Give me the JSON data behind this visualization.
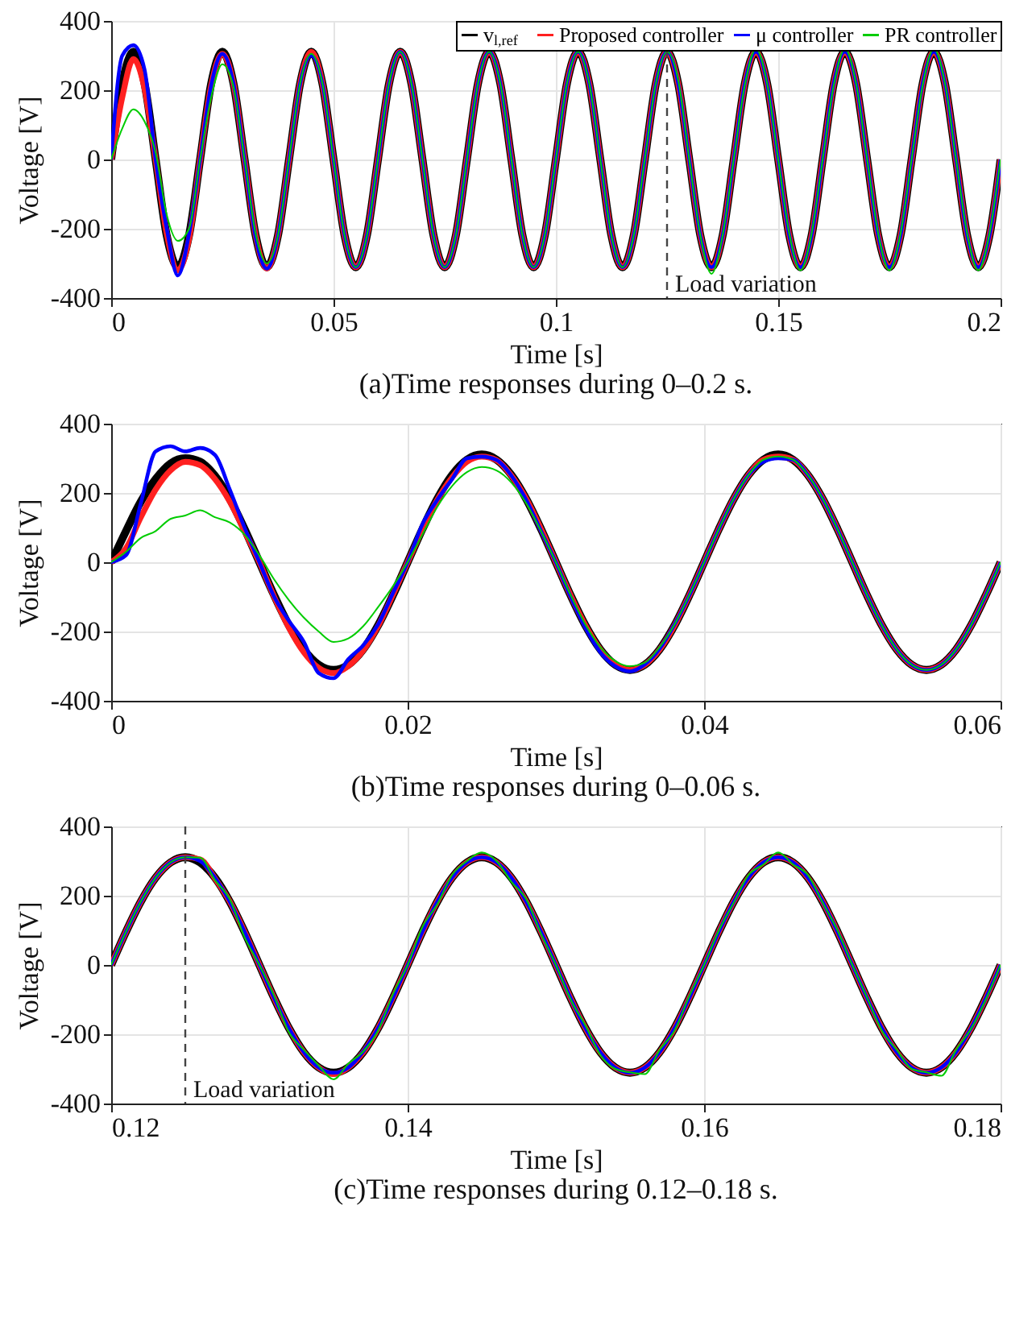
{
  "chart_data": [
    {
      "type": "line",
      "title": "(a)Time responses during 0–0.2 s.",
      "xlabel": "Time [s]",
      "ylabel": "Voltage [V]",
      "xlim": [
        0,
        0.2
      ],
      "xticks": [
        0,
        0.05,
        0.1,
        0.15,
        0.2
      ],
      "ylim": [
        -400,
        400
      ],
      "yticks": [
        -400,
        -200,
        0,
        200,
        400
      ],
      "grid": true,
      "legend": "top right",
      "x": [
        0,
        0.0025,
        0.005,
        0.0075,
        0.01,
        0.0125,
        0.015,
        0.0175,
        0.02,
        0.0225,
        0.025,
        0.0275,
        0.03,
        0.0325,
        0.035,
        0.0375,
        0.04,
        0.0425,
        0.045,
        0.0475,
        0.05,
        0.0525,
        0.055,
        0.0575,
        0.06,
        0.0625,
        0.065,
        0.0675,
        0.07,
        0.0725,
        0.075,
        0.0775,
        0.08,
        0.0825,
        0.085,
        0.0875,
        0.09,
        0.0925,
        0.095,
        0.0975,
        0.1,
        0.1025,
        0.105,
        0.1075,
        0.11,
        0.1125,
        0.115,
        0.1175,
        0.12,
        0.1225,
        0.125,
        0.1275,
        0.13,
        0.1325,
        0.135,
        0.1375,
        0.14,
        0.1425,
        0.145,
        0.1475,
        0.15,
        0.1525,
        0.155,
        0.1575,
        0.16,
        0.1625,
        0.165,
        0.1675,
        0.17,
        0.1725,
        0.175,
        0.1775,
        0.18,
        0.1825,
        0.185,
        0.1875,
        0.19,
        0.1925,
        0.195,
        0.1975,
        0.2
      ],
      "series": [
        {
          "name": "v$_{l,ref}$",
          "color": "#000000",
          "values": [
            0,
            220,
            311,
            220,
            0,
            -220,
            -311,
            -220,
            0,
            220,
            311,
            220,
            0,
            -220,
            -311,
            -220,
            0,
            220,
            311,
            220,
            0,
            -220,
            -311,
            -220,
            0,
            220,
            311,
            220,
            0,
            -220,
            -311,
            -220,
            0,
            220,
            311,
            220,
            0,
            -220,
            -311,
            -220,
            0,
            220,
            311,
            220,
            0,
            -220,
            -311,
            -220,
            0,
            220,
            311,
            220,
            0,
            -220,
            -311,
            -220,
            0,
            220,
            311,
            220,
            0,
            -220,
            -311,
            -220,
            0,
            220,
            311,
            220,
            0,
            -220,
            -311,
            -220,
            0,
            220,
            311,
            220,
            0,
            -220,
            -311,
            -220,
            0
          ]
        },
        {
          "name": "Proposed controller",
          "color": "#ff2020",
          "values": [
            0,
            180,
            290,
            205,
            0,
            -215,
            -320,
            -230,
            0,
            215,
            305,
            220,
            0,
            -220,
            -315,
            -220,
            0,
            220,
            311,
            220,
            0,
            -220,
            -311,
            -220,
            0,
            220,
            311,
            220,
            0,
            -220,
            -311,
            -220,
            0,
            220,
            311,
            220,
            0,
            -220,
            -311,
            -220,
            0,
            220,
            311,
            220,
            0,
            -220,
            -311,
            -220,
            0,
            220,
            311,
            220,
            0,
            -220,
            -311,
            -220,
            0,
            220,
            311,
            220,
            0,
            -220,
            -311,
            -220,
            0,
            220,
            311,
            220,
            0,
            -220,
            -311,
            -220,
            0,
            220,
            311,
            220,
            0,
            -220,
            -311,
            -220,
            0
          ]
        },
        {
          "name": "μ controller",
          "color": "#0000ff",
          "values": [
            0,
            300,
            330,
            260,
            0,
            -200,
            -335,
            -215,
            0,
            215,
            305,
            220,
            0,
            -225,
            -315,
            -220,
            0,
            220,
            300,
            220,
            0,
            -220,
            -311,
            -220,
            0,
            220,
            311,
            220,
            0,
            -220,
            -311,
            -220,
            0,
            220,
            311,
            220,
            0,
            -220,
            -311,
            -220,
            0,
            220,
            311,
            220,
            0,
            -220,
            -311,
            -220,
            0,
            220,
            311,
            220,
            0,
            -220,
            -311,
            -220,
            0,
            220,
            311,
            220,
            0,
            -220,
            -311,
            -220,
            0,
            220,
            311,
            220,
            0,
            -220,
            -311,
            -220,
            0,
            220,
            311,
            220,
            0,
            -220,
            -311,
            -220,
            0
          ]
        },
        {
          "name": "PR controller",
          "color": "#00cc00",
          "values": [
            0,
            90,
            145,
            110,
            20,
            -160,
            -235,
            -200,
            0,
            180,
            275,
            210,
            0,
            -215,
            -300,
            -220,
            0,
            220,
            305,
            220,
            0,
            -220,
            -311,
            -220,
            0,
            220,
            311,
            220,
            0,
            -220,
            -311,
            -220,
            0,
            220,
            311,
            220,
            0,
            -220,
            -311,
            -220,
            0,
            220,
            311,
            220,
            0,
            -220,
            -311,
            -220,
            0,
            220,
            311,
            230,
            0,
            -220,
            -330,
            -220,
            0,
            215,
            320,
            220,
            0,
            -215,
            -320,
            -215,
            0,
            215,
            320,
            220,
            0,
            -215,
            -320,
            -215,
            0,
            215,
            320,
            220,
            0,
            -215,
            -320,
            -215,
            0
          ]
        }
      ],
      "ref_lines": [
        {
          "axis": "x",
          "value": 0.125,
          "label": "Load variation",
          "line_style": "dashed",
          "color": "#444444"
        }
      ]
    },
    {
      "type": "line",
      "title": "(b)Time responses during 0–0.06 s.",
      "xlabel": "Time [s]",
      "ylabel": "Voltage [V]",
      "xlim": [
        0,
        0.06
      ],
      "xticks": [
        0,
        0.02,
        0.04,
        0.06
      ],
      "ylim": [
        -400,
        400
      ],
      "yticks": [
        -400,
        -200,
        0,
        200,
        400
      ],
      "grid": true,
      "x": [
        0,
        0.001,
        0.002,
        0.003,
        0.004,
        0.005,
        0.006,
        0.007,
        0.008,
        0.009,
        0.01,
        0.011,
        0.012,
        0.013,
        0.014,
        0.015,
        0.016,
        0.017,
        0.018,
        0.019,
        0.02,
        0.021,
        0.022,
        0.023,
        0.024,
        0.025,
        0.026,
        0.027,
        0.028,
        0.029,
        0.03,
        0.031,
        0.032,
        0.033,
        0.034,
        0.035,
        0.036,
        0.037,
        0.038,
        0.039,
        0.04,
        0.041,
        0.042,
        0.043,
        0.044,
        0.045,
        0.046,
        0.047,
        0.048,
        0.049,
        0.05,
        0.051,
        0.052,
        0.053,
        0.054,
        0.055,
        0.056,
        0.057,
        0.058,
        0.059,
        0.06
      ],
      "series": [
        {
          "color": "#000000",
          "values": [
            0,
            90,
            175,
            240,
            285,
            300,
            290,
            250,
            183,
            96,
            0,
            -96,
            -183,
            -252,
            -296,
            -311,
            -296,
            -252,
            -183,
            -96,
            0,
            96,
            183,
            252,
            296,
            311,
            296,
            252,
            183,
            96,
            0,
            -96,
            -183,
            -252,
            -296,
            -311,
            -296,
            -252,
            -183,
            -96,
            0,
            96,
            183,
            252,
            296,
            311,
            296,
            252,
            183,
            96,
            0,
            -96,
            -183,
            -252,
            -296,
            -311,
            -296,
            -252,
            -183,
            -96,
            0
          ]
        },
        {
          "color": "#ff2020",
          "values": [
            0,
            40,
            130,
            210,
            265,
            290,
            280,
            240,
            175,
            90,
            0,
            -100,
            -190,
            -260,
            -305,
            -320,
            -300,
            -255,
            -185,
            -95,
            0,
            95,
            180,
            245,
            290,
            305,
            295,
            250,
            183,
            96,
            0,
            -96,
            -183,
            -252,
            -296,
            -311,
            -296,
            -252,
            -183,
            -96,
            0,
            96,
            183,
            252,
            296,
            305,
            296,
            252,
            183,
            96,
            0,
            -96,
            -183,
            -252,
            -296,
            -311,
            -296,
            -252,
            -183,
            -96,
            0
          ]
        },
        {
          "color": "#0000ff",
          "values": [
            0,
            20,
            170,
            320,
            335,
            320,
            330,
            310,
            210,
            100,
            0,
            -100,
            -170,
            -230,
            -320,
            -335,
            -280,
            -240,
            -180,
            -90,
            0,
            110,
            180,
            240,
            300,
            305,
            295,
            250,
            180,
            90,
            0,
            -100,
            -190,
            -260,
            -300,
            -315,
            -295,
            -250,
            -180,
            -96,
            0,
            96,
            183,
            252,
            290,
            300,
            296,
            252,
            183,
            96,
            0,
            -96,
            -183,
            -252,
            -296,
            -311,
            -296,
            -252,
            -183,
            -96,
            0
          ]
        },
        {
          "color": "#00cc00",
          "values": [
            0,
            30,
            70,
            90,
            125,
            135,
            150,
            130,
            115,
            80,
            20,
            -50,
            -110,
            -160,
            -200,
            -230,
            -220,
            -185,
            -130,
            -70,
            0,
            80,
            160,
            220,
            260,
            275,
            265,
            230,
            170,
            90,
            0,
            -95,
            -180,
            -245,
            -285,
            -300,
            -290,
            -245,
            -180,
            -95,
            0,
            96,
            183,
            252,
            296,
            305,
            296,
            252,
            183,
            96,
            0,
            -96,
            -183,
            -252,
            -296,
            -311,
            -296,
            -252,
            -183,
            -96,
            0
          ]
        }
      ]
    },
    {
      "type": "line",
      "title": "(c)Time responses during 0.12–0.18 s.",
      "xlabel": "Time [s]",
      "ylabel": "Voltage [V]",
      "xlim": [
        0.12,
        0.18
      ],
      "xticks": [
        0.12,
        0.14,
        0.16,
        0.18
      ],
      "ylim": [
        -400,
        400
      ],
      "yticks": [
        -400,
        -200,
        0,
        200,
        400
      ],
      "grid": true,
      "x": [
        0.12,
        0.121,
        0.122,
        0.123,
        0.124,
        0.125,
        0.126,
        0.127,
        0.128,
        0.129,
        0.13,
        0.131,
        0.132,
        0.133,
        0.134,
        0.135,
        0.136,
        0.137,
        0.138,
        0.139,
        0.14,
        0.141,
        0.142,
        0.143,
        0.144,
        0.145,
        0.146,
        0.147,
        0.148,
        0.149,
        0.15,
        0.151,
        0.152,
        0.153,
        0.154,
        0.155,
        0.156,
        0.157,
        0.158,
        0.159,
        0.16,
        0.161,
        0.162,
        0.163,
        0.164,
        0.165,
        0.166,
        0.167,
        0.168,
        0.169,
        0.17,
        0.171,
        0.172,
        0.173,
        0.174,
        0.175,
        0.176,
        0.177,
        0.178,
        0.179,
        0.18
      ],
      "series": [
        {
          "color": "#000000",
          "values": [
            0,
            96,
            183,
            252,
            296,
            311,
            296,
            252,
            183,
            96,
            0,
            -96,
            -183,
            -252,
            -296,
            -311,
            -296,
            -252,
            -183,
            -96,
            0,
            96,
            183,
            252,
            296,
            311,
            296,
            252,
            183,
            96,
            0,
            -96,
            -183,
            -252,
            -296,
            -311,
            -296,
            -252,
            -183,
            -96,
            0,
            96,
            183,
            252,
            296,
            311,
            296,
            252,
            183,
            96,
            0,
            -96,
            -183,
            -252,
            -296,
            -311,
            -296,
            -252,
            -183,
            -96,
            0
          ]
        },
        {
          "color": "#ff2020",
          "values": [
            0,
            96,
            183,
            252,
            296,
            311,
            305,
            250,
            183,
            96,
            0,
            -96,
            -183,
            -252,
            -296,
            -315,
            -296,
            -252,
            -183,
            -96,
            0,
            96,
            183,
            252,
            296,
            311,
            296,
            252,
            183,
            96,
            0,
            -96,
            -183,
            -252,
            -296,
            -311,
            -296,
            -252,
            -183,
            -96,
            0,
            96,
            183,
            252,
            296,
            311,
            296,
            252,
            183,
            96,
            0,
            -96,
            -183,
            -252,
            -296,
            -311,
            -296,
            -252,
            -183,
            -96,
            0
          ]
        },
        {
          "color": "#0000ff",
          "values": [
            0,
            96,
            183,
            252,
            296,
            311,
            300,
            252,
            183,
            96,
            0,
            -96,
            -183,
            -252,
            -296,
            -311,
            -296,
            -250,
            -183,
            -96,
            0,
            96,
            183,
            252,
            296,
            311,
            296,
            252,
            183,
            96,
            0,
            -96,
            -183,
            -252,
            -296,
            -311,
            -296,
            -252,
            -183,
            -96,
            0,
            96,
            183,
            252,
            296,
            311,
            296,
            252,
            183,
            96,
            0,
            -96,
            -183,
            -252,
            -296,
            -311,
            -296,
            -252,
            -183,
            -96,
            0
          ]
        },
        {
          "color": "#00cc00",
          "values": [
            0,
            96,
            183,
            252,
            296,
            311,
            310,
            245,
            190,
            80,
            0,
            -90,
            -195,
            -245,
            -290,
            -330,
            -285,
            -250,
            -190,
            -85,
            0,
            110,
            175,
            260,
            300,
            325,
            300,
            240,
            190,
            90,
            0,
            -100,
            -175,
            -260,
            -300,
            -310,
            -315,
            -245,
            -190,
            -90,
            0,
            100,
            180,
            260,
            290,
            325,
            290,
            260,
            180,
            100,
            0,
            -95,
            -190,
            -245,
            -300,
            -310,
            -320,
            -245,
            -185,
            -100,
            0
          ]
        }
      ],
      "ref_lines": [
        {
          "axis": "x",
          "value": 0.125,
          "label": "Load variation",
          "line_style": "dashed",
          "color": "#444444"
        }
      ]
    }
  ]
}
